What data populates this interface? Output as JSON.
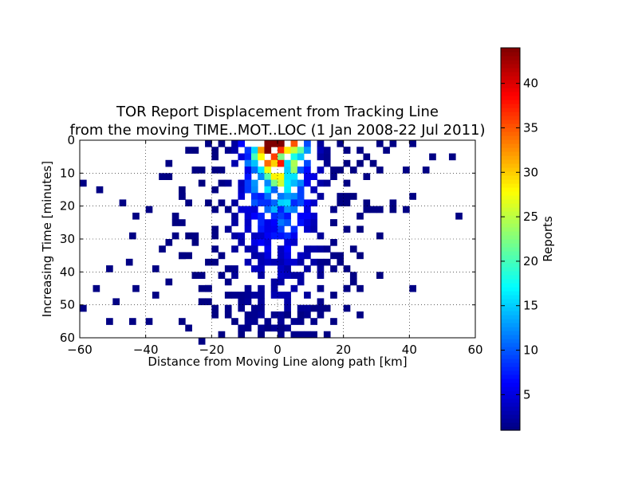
{
  "chart_data": {
    "type": "heatmap",
    "title": "TOR Report Displacement from Tracking Line",
    "subtitle": "from the moving TIME..MOT..LOC (1 Jan 2008-22 Jul 2011)",
    "xlabel": "Distance from Moving Line along path [km]",
    "ylabel": "Increasing Time [minutes]",
    "xlim": [
      -60,
      60
    ],
    "ylim": [
      0,
      60
    ],
    "y_inverted": true,
    "bin_size": 2,
    "grid": true,
    "colormap": "jet",
    "colorbar": {
      "label": "Reports",
      "min": 1,
      "max": 44,
      "ticks": [
        5,
        10,
        15,
        20,
        25,
        30,
        35,
        40
      ],
      "tick_labels": [
        "5",
        "10",
        "15",
        "20",
        "25",
        "30",
        "35",
        "40"
      ]
    },
    "x_ticks": [
      -60,
      -40,
      -20,
      0,
      20,
      40,
      60
    ],
    "x_tick_labels": [
      "−60",
      "−40",
      "−20",
      "0",
      "20",
      "40",
      "60"
    ],
    "y_ticks": [
      0,
      10,
      20,
      30,
      40,
      50,
      60
    ],
    "y_tick_labels": [
      "0",
      "10",
      "20",
      "30",
      "40",
      "50",
      "60"
    ],
    "core": {
      "peak_x": 0,
      "peak_y": 0.5,
      "peak_value": 44,
      "x_spread_km": [
        5,
        10
      ],
      "decay_minutes": 14,
      "presence_sigma_km": 13
    },
    "outliers": [
      [
        -60,
        12
      ],
      [
        -48,
        18
      ],
      [
        -55,
        14
      ],
      [
        -45,
        28
      ],
      [
        -52,
        38
      ],
      [
        -56,
        44
      ],
      [
        -60,
        50
      ],
      [
        -52,
        54
      ],
      [
        -45,
        54
      ],
      [
        -50,
        48
      ],
      [
        -40,
        54
      ],
      [
        -44,
        44
      ],
      [
        -46,
        36
      ],
      [
        -38,
        46
      ],
      [
        -34,
        42
      ],
      [
        -30,
        34
      ],
      [
        -28,
        56
      ],
      [
        -36,
        10
      ],
      [
        -34,
        6
      ],
      [
        -44,
        22
      ],
      [
        -40,
        20
      ],
      [
        -26,
        8
      ],
      [
        -28,
        2
      ],
      [
        -22,
        0
      ],
      [
        -24,
        60
      ],
      [
        -18,
        58
      ],
      [
        -14,
        54
      ],
      [
        -12,
        58
      ],
      [
        -6,
        58
      ],
      [
        0,
        56
      ],
      [
        -4,
        56
      ],
      [
        2,
        52
      ],
      [
        6,
        52
      ],
      [
        10,
        50
      ],
      [
        14,
        50
      ],
      [
        16,
        46
      ],
      [
        20,
        44
      ],
      [
        22,
        42
      ],
      [
        24,
        44
      ],
      [
        22,
        40
      ],
      [
        20,
        38
      ],
      [
        18,
        34
      ],
      [
        20,
        26
      ],
      [
        24,
        22
      ],
      [
        26,
        20
      ],
      [
        28,
        20
      ],
      [
        30,
        20
      ],
      [
        34,
        18
      ],
      [
        38,
        20
      ],
      [
        40,
        16
      ],
      [
        38,
        8
      ],
      [
        44,
        8
      ],
      [
        46,
        4
      ],
      [
        52,
        4
      ],
      [
        54,
        22
      ],
      [
        40,
        0
      ],
      [
        30,
        0
      ],
      [
        32,
        2
      ],
      [
        34,
        0
      ],
      [
        26,
        4
      ],
      [
        28,
        6
      ],
      [
        30,
        8
      ],
      [
        26,
        10
      ],
      [
        24,
        2
      ],
      [
        20,
        2
      ],
      [
        22,
        8
      ],
      [
        20,
        12
      ],
      [
        16,
        24
      ],
      [
        18,
        16
      ],
      [
        -30,
        24
      ],
      [
        -32,
        28
      ],
      [
        -34,
        30
      ],
      [
        -38,
        38
      ],
      [
        -24,
        40
      ],
      [
        -22,
        44
      ],
      [
        -20,
        50
      ],
      [
        40,
        44
      ],
      [
        20,
        50
      ],
      [
        24,
        52
      ],
      [
        -36,
        32
      ],
      [
        -30,
        16
      ],
      [
        -28,
        18
      ],
      [
        -32,
        22
      ],
      [
        -26,
        28
      ]
    ]
  }
}
